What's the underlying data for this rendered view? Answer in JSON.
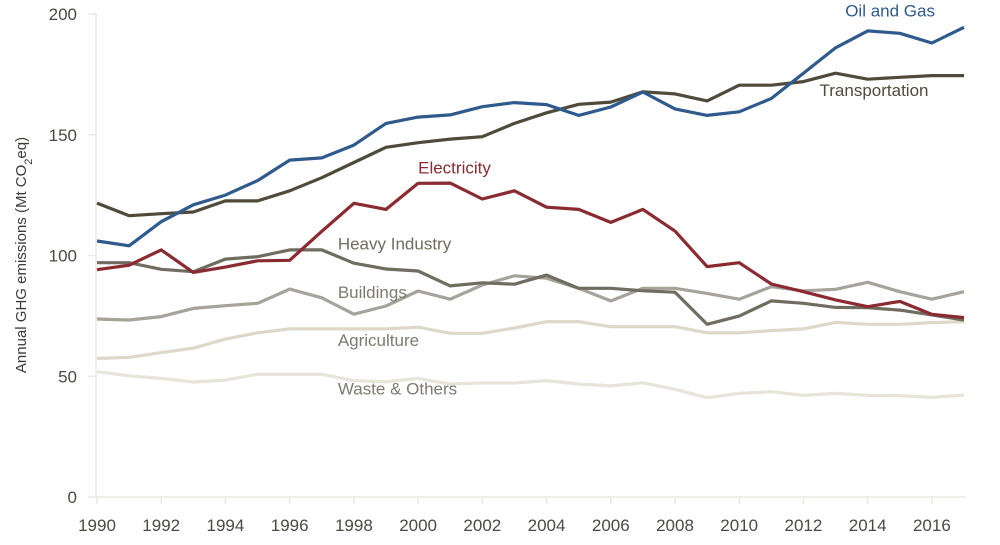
{
  "chart_data": {
    "type": "line",
    "title": "",
    "xlabel": "",
    "ylabel": "Annual GHG emissions (Mt CO2eq)",
    "ylabel_parts": {
      "pre": "Annual GHG emissions (Mt CO",
      "sub": "2",
      "post": "eq)"
    },
    "x": [
      1990,
      1991,
      1992,
      1993,
      1994,
      1995,
      1996,
      1997,
      1998,
      1999,
      2000,
      2001,
      2002,
      2003,
      2004,
      2005,
      2006,
      2007,
      2008,
      2009,
      2010,
      2011,
      2012,
      2013,
      2014,
      2015,
      2016,
      2017
    ],
    "xlim": [
      1990,
      2017
    ],
    "ylim": [
      0,
      200
    ],
    "x_ticks": [
      "1990",
      "1992",
      "1994",
      "1996",
      "1998",
      "2000",
      "2002",
      "2004",
      "2006",
      "2008",
      "2010",
      "2012",
      "2014",
      "2016"
    ],
    "y_ticks": [
      "0",
      "50",
      "100",
      "150",
      "200"
    ],
    "grid": false,
    "legend": "inline labels",
    "series": [
      {
        "name": "Oil and Gas",
        "color": "#2f5a8e",
        "values": [
          106,
          104,
          114,
          121,
          125,
          131,
          139.5,
          140.4,
          145.7,
          154.7,
          157.3,
          158.2,
          161.6,
          163.3,
          162.5,
          158,
          161.5,
          167.7,
          160.7,
          158,
          159.5,
          165,
          175.5,
          186,
          193,
          192,
          188,
          194.5
        ]
      },
      {
        "name": "Transportation",
        "color": "#4f4a3a",
        "values": [
          121.7,
          116.5,
          117.3,
          118,
          122.6,
          122.6,
          126.8,
          132.2,
          138.5,
          144.8,
          146.7,
          148.2,
          149.2,
          154.7,
          159.1,
          162.6,
          163.5,
          167.8,
          166.9,
          164,
          170.5,
          170.5,
          172,
          175.5,
          173,
          173.8,
          174.5,
          174.5
        ]
      },
      {
        "name": "Electricity",
        "color": "#8a2a31",
        "values": [
          94.1,
          96,
          102.3,
          93,
          95.2,
          97.8,
          98,
          110,
          121.6,
          119.1,
          129.9,
          130,
          123.4,
          126.8,
          120,
          119.1,
          113.7,
          119.1,
          110.1,
          95.4,
          97,
          88.2,
          85,
          81.6,
          78.8,
          81,
          75.6,
          74.3
        ]
      },
      {
        "name": "Heavy Industry",
        "color": "#6f6c60",
        "values": [
          97,
          97,
          94.3,
          93.3,
          98.5,
          99.5,
          102.3,
          102.3,
          96.8,
          94.4,
          93.6,
          87.4,
          88.7,
          88.1,
          91.9,
          86.4,
          86.4,
          85.4,
          84.8,
          71.5,
          74.9,
          81.2,
          80.2,
          78.5,
          78.4,
          77.4,
          75.4,
          73.3
        ]
      },
      {
        "name": "Buildings",
        "color": "#a5a39a",
        "values": [
          73.7,
          73.3,
          74.7,
          78.1,
          79.2,
          80.2,
          86.1,
          82.5,
          75.7,
          79.1,
          85.3,
          81.9,
          87.8,
          91.6,
          90.6,
          86.4,
          81.2,
          86.4,
          86.4,
          84.3,
          81.9,
          87.1,
          85.4,
          86,
          88.9,
          85,
          81.9,
          85
        ]
      },
      {
        "name": "Agriculture",
        "color": "#ddd8c8",
        "values": [
          57.4,
          57.8,
          59.8,
          61.6,
          65.4,
          68,
          69.6,
          69.6,
          69.6,
          69.6,
          70.3,
          67.8,
          67.8,
          70,
          72.6,
          72.6,
          70.5,
          70.5,
          70.5,
          68,
          68,
          68.9,
          69.6,
          72.3,
          71.5,
          71.5,
          72.2,
          72.6
        ]
      },
      {
        "name": "Waste & Others",
        "color": "#e7e4da",
        "values": [
          51.9,
          50.2,
          49.1,
          47.6,
          48.4,
          50.8,
          50.8,
          50.8,
          48.2,
          47.7,
          49.1,
          46.8,
          47.2,
          47.2,
          48.2,
          46.8,
          46,
          47.3,
          44.6,
          41.1,
          42.9,
          43.6,
          42.1,
          42.9,
          42.1,
          42,
          41.3,
          42.2
        ]
      }
    ],
    "labels": [
      {
        "series": "Oil and Gas",
        "text": "Oil and Gas",
        "at_year": 2013.3,
        "at_value": 199
      },
      {
        "series": "Transportation",
        "text": "Transportation",
        "at_year": 2012.5,
        "at_value": 166
      },
      {
        "series": "Electricity",
        "text": "Electricity",
        "at_year": 2000,
        "at_value": 134
      },
      {
        "series": "Heavy Industry",
        "text": "Heavy Industry",
        "at_year": 1997.5,
        "at_value": 102.5
      },
      {
        "series": "Buildings",
        "text": "Buildings",
        "at_year": 1997.5,
        "at_value": 82.5
      },
      {
        "series": "Agriculture",
        "text": "Agriculture",
        "at_year": 1997.5,
        "at_value": 62.5
      },
      {
        "series": "Waste & Others",
        "text": "Waste & Others",
        "at_year": 1997.5,
        "at_value": 42.5
      }
    ]
  }
}
